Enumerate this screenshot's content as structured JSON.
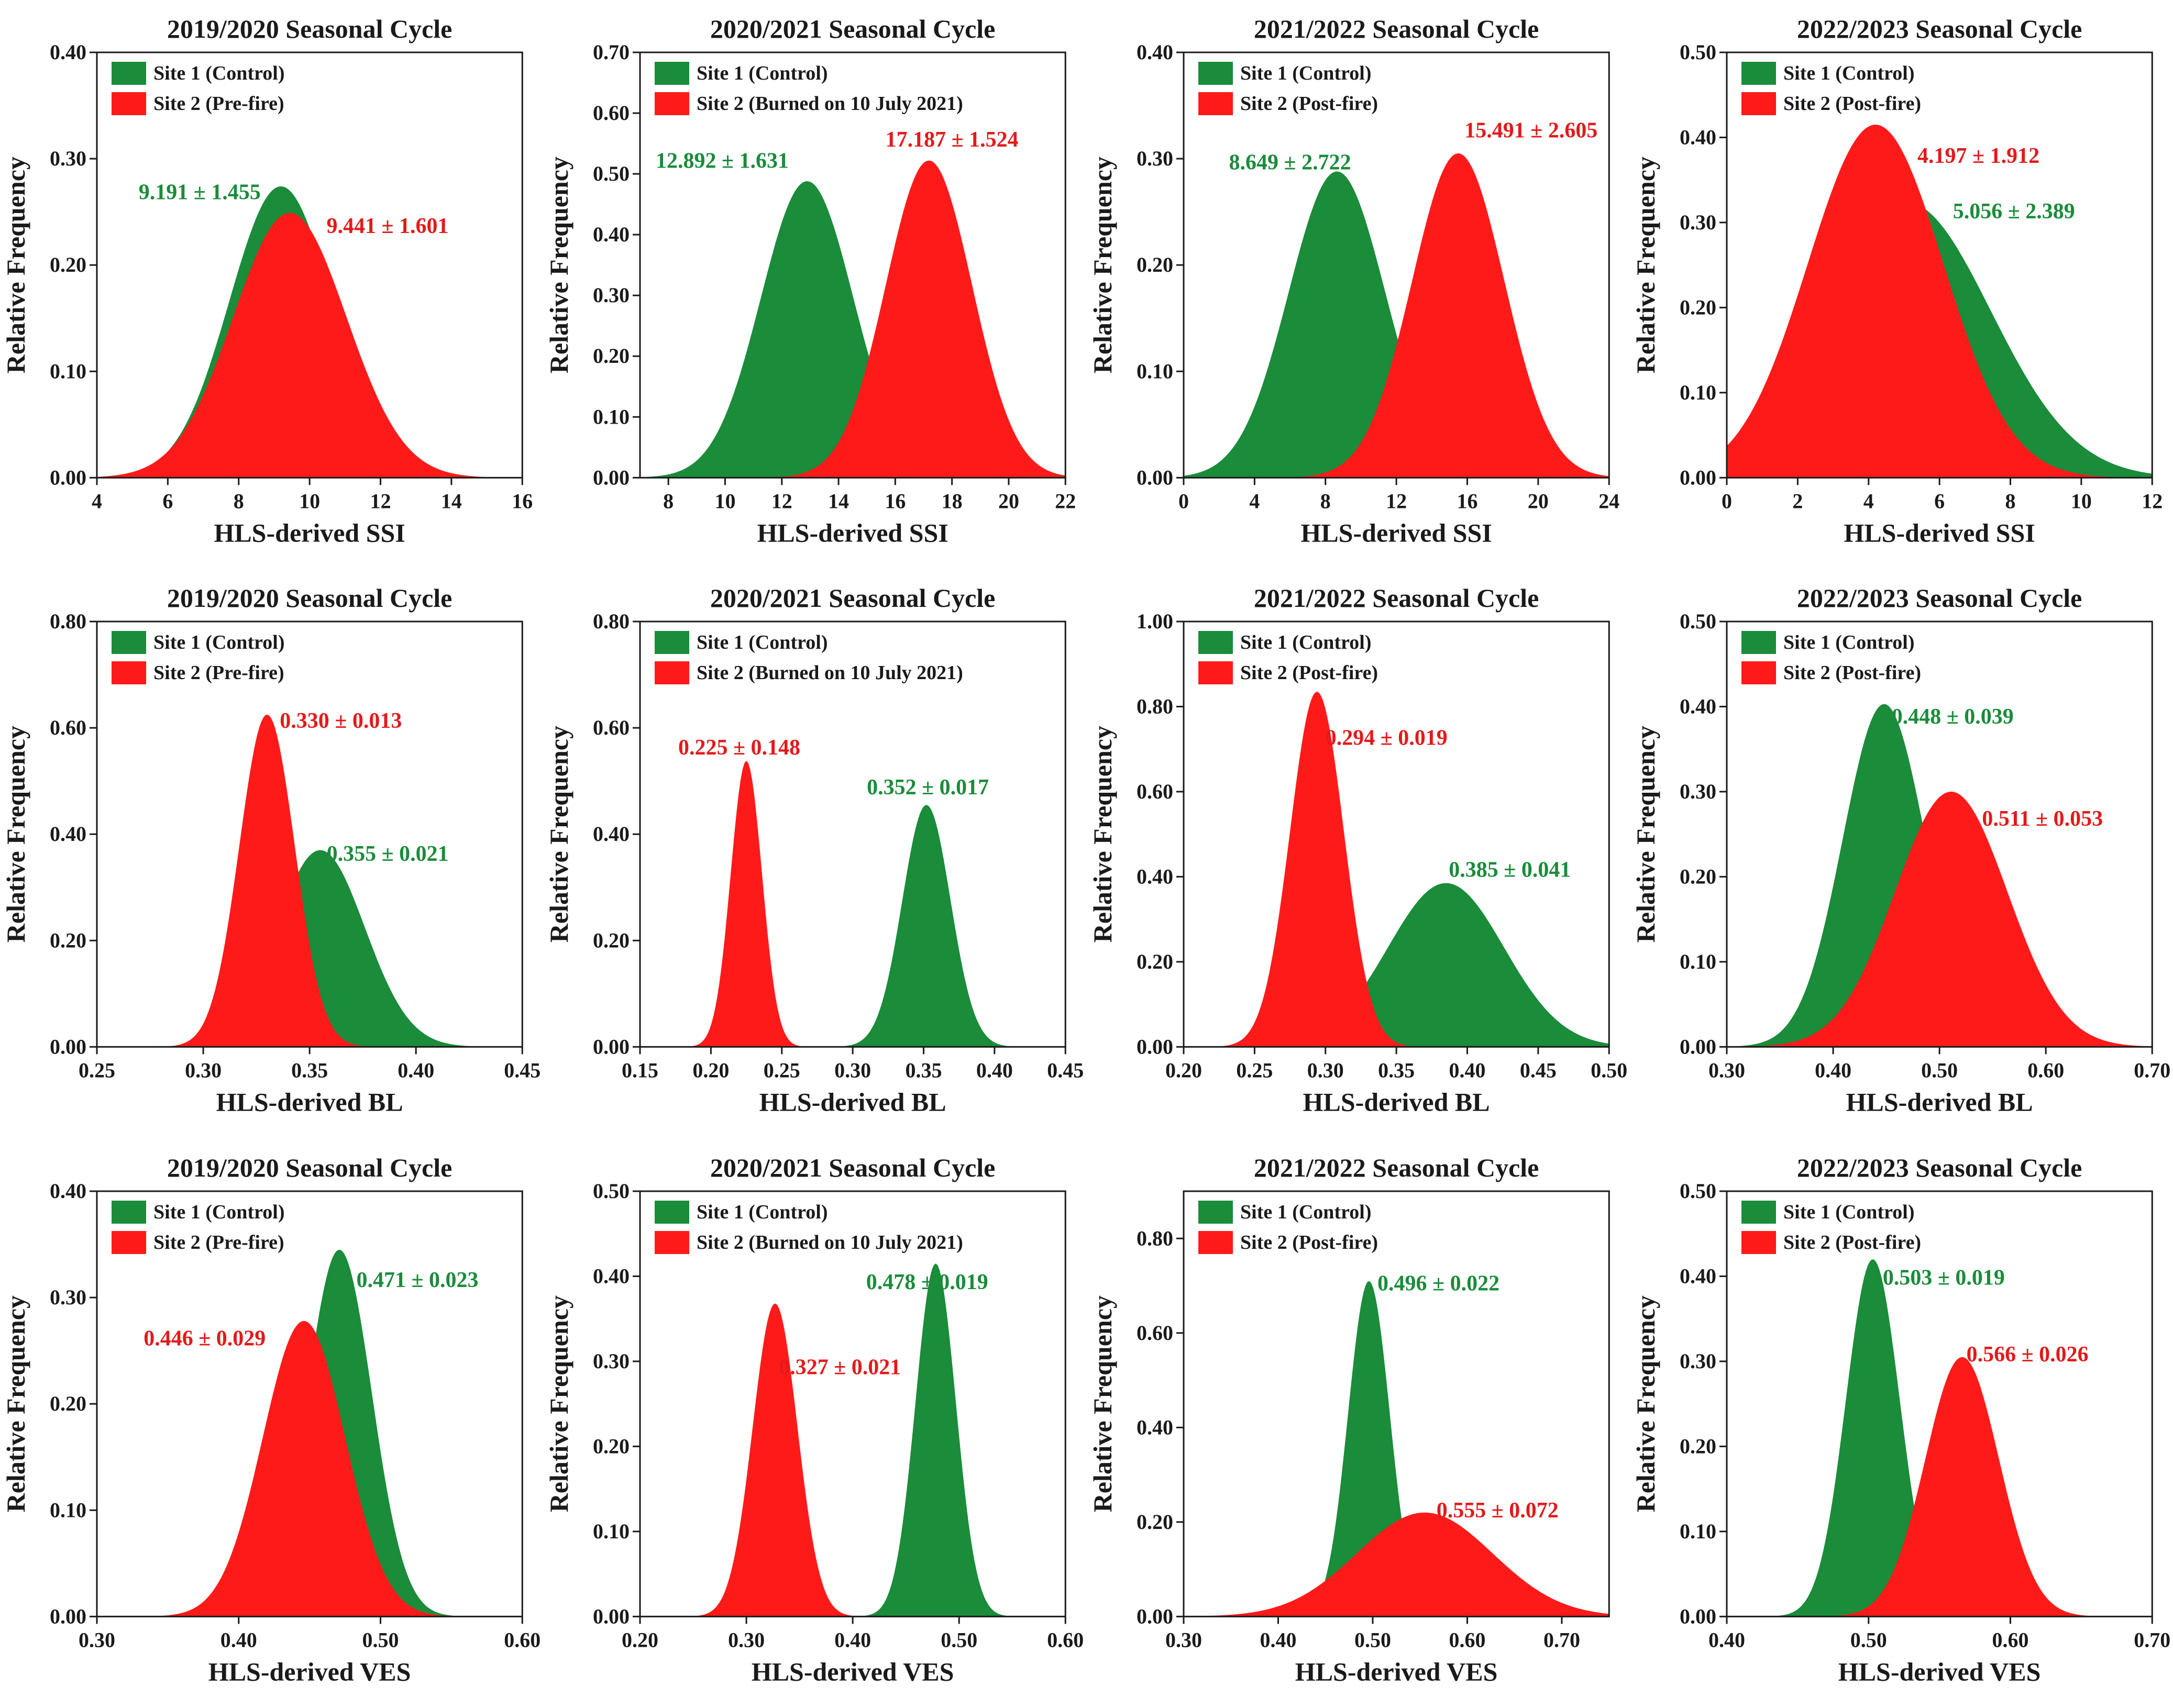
{
  "figure": {
    "rows": 3,
    "cols": 4
  },
  "colors": {
    "site1": "#1a8c3a",
    "site2": "#ff1a1a",
    "site1_text": "#1a8c3a",
    "site2_text": "#e31a1a",
    "axis": "#1a1a1a"
  },
  "chart_data": [
    {
      "type": "area",
      "title": "2019/2020 Seasonal Cycle",
      "xlabel": "HLS-derived SSI",
      "ylabel": "Relative Frequency",
      "xlim": [
        4,
        16
      ],
      "ylim": [
        0,
        0.4
      ],
      "xticks": [
        4,
        6,
        8,
        10,
        12,
        14,
        16
      ],
      "xtick_labels": [
        "4",
        "6",
        "8",
        "10",
        "12",
        "14",
        "16"
      ],
      "yticks": [
        0,
        0.1,
        0.2,
        0.3,
        0.4
      ],
      "ytick_labels": [
        "0.00",
        "0.10",
        "0.20",
        "0.30",
        "0.40"
      ],
      "series": [
        {
          "name": "Site 1 (Control)",
          "mean": 9.191,
          "sd": 1.455,
          "peak": 0.274,
          "label": "9.191 ± 1.455",
          "label_at": [
            6.9,
            0.262
          ],
          "label_anchor": "middle"
        },
        {
          "name": "Site 2 (Pre-fire)",
          "mean": 9.441,
          "sd": 1.601,
          "peak": 0.249,
          "label": "9.441 ± 1.601",
          "label_at": [
            12.2,
            0.23
          ],
          "label_anchor": "middle"
        }
      ]
    },
    {
      "type": "area",
      "title": "2020/2021 Seasonal Cycle",
      "xlabel": "HLS-derived SSI",
      "ylabel": "Relative Frequency",
      "xlim": [
        7,
        22
      ],
      "ylim": [
        0,
        0.7
      ],
      "xticks": [
        8,
        10,
        12,
        14,
        16,
        18,
        20,
        22
      ],
      "xtick_labels": [
        "8",
        "10",
        "12",
        "14",
        "16",
        "18",
        "20",
        "22"
      ],
      "yticks": [
        0,
        0.1,
        0.2,
        0.3,
        0.4,
        0.5,
        0.6,
        0.7
      ],
      "ytick_labels": [
        "0.00",
        "0.10",
        "0.20",
        "0.30",
        "0.40",
        "0.50",
        "0.60",
        "0.70"
      ],
      "series": [
        {
          "name": "Site 1 (Control)",
          "mean": 12.892,
          "sd": 1.631,
          "peak": 0.488,
          "label": "12.892 ± 1.631",
          "label_at": [
            9.9,
            0.51
          ],
          "label_anchor": "middle"
        },
        {
          "name": "Site 2 (Burned on 10 July 2021)",
          "mean": 17.187,
          "sd": 1.524,
          "peak": 0.522,
          "label": "17.187 ± 1.524",
          "label_at": [
            18.0,
            0.545
          ],
          "label_anchor": "middle"
        }
      ]
    },
    {
      "type": "area",
      "title": "2021/2022 Seasonal Cycle",
      "xlabel": "HLS-derived SSI",
      "ylabel": "Relative Frequency",
      "xlim": [
        0,
        24
      ],
      "ylim": [
        0,
        0.4
      ],
      "xticks": [
        0,
        4,
        8,
        12,
        16,
        20,
        24
      ],
      "xtick_labels": [
        "0",
        "4",
        "8",
        "12",
        "16",
        "20",
        "24"
      ],
      "yticks": [
        0,
        0.1,
        0.2,
        0.3,
        0.4
      ],
      "ytick_labels": [
        "0.00",
        "0.10",
        "0.20",
        "0.30",
        "0.40"
      ],
      "series": [
        {
          "name": "Site 1 (Control)",
          "mean": 8.649,
          "sd": 2.722,
          "peak": 0.288,
          "label": "8.649 ± 2.722",
          "label_at": [
            6.0,
            0.29
          ],
          "label_anchor": "middle"
        },
        {
          "name": "Site 2 (Post-fire)",
          "mean": 15.491,
          "sd": 2.605,
          "peak": 0.305,
          "label": "15.491 ± 2.605",
          "label_at": [
            19.6,
            0.32
          ],
          "label_anchor": "middle"
        }
      ]
    },
    {
      "type": "area",
      "title": "2022/2023 Seasonal Cycle",
      "xlabel": "HLS-derived SSI",
      "ylabel": "Relative Frequency",
      "xlim": [
        0,
        12
      ],
      "ylim": [
        0,
        0.5
      ],
      "xticks": [
        0,
        2,
        4,
        6,
        8,
        10,
        12
      ],
      "xtick_labels": [
        "0",
        "2",
        "4",
        "6",
        "8",
        "10",
        "12"
      ],
      "yticks": [
        0,
        0.1,
        0.2,
        0.3,
        0.4,
        0.5
      ],
      "ytick_labels": [
        "0.00",
        "0.10",
        "0.20",
        "0.30",
        "0.40",
        "0.50"
      ],
      "series": [
        {
          "name": "Site 1 (Control)",
          "mean": 5.056,
          "sd": 2.389,
          "peak": 0.324,
          "label": "5.056 ± 2.389",
          "label_at": [
            8.1,
            0.305
          ],
          "label_anchor": "middle"
        },
        {
          "name": "Site 2 (Post-fire)",
          "mean": 4.197,
          "sd": 1.912,
          "peak": 0.415,
          "label": "4.197 ± 1.912",
          "label_at": [
            7.1,
            0.37
          ],
          "label_anchor": "middle"
        }
      ]
    },
    {
      "type": "area",
      "title": "2019/2020 Seasonal Cycle",
      "xlabel": "HLS-derived BL",
      "ylabel": "Relative Frequency",
      "xlim": [
        0.25,
        0.45
      ],
      "ylim": [
        0,
        0.8
      ],
      "xticks": [
        0.25,
        0.3,
        0.35,
        0.4,
        0.45
      ],
      "xtick_labels": [
        "0.25",
        "0.30",
        "0.35",
        "0.40",
        "0.45"
      ],
      "yticks": [
        0,
        0.2,
        0.4,
        0.6,
        0.8
      ],
      "ytick_labels": [
        "0.00",
        "0.20",
        "0.40",
        "0.60",
        "0.80"
      ],
      "series": [
        {
          "name": "Site 1 (Control)",
          "mean": 0.355,
          "sd": 0.021,
          "peak": 0.37,
          "label": "0.355 ± 0.021",
          "label_at": [
            0.358,
            0.35
          ],
          "label_anchor": "start"
        },
        {
          "name": "Site 2 (Pre-fire)",
          "mean": 0.33,
          "sd": 0.013,
          "peak": 0.625,
          "label": "0.330 ± 0.013",
          "label_at": [
            0.336,
            0.6
          ],
          "label_anchor": "start"
        }
      ]
    },
    {
      "type": "area",
      "title": "2020/2021 Seasonal Cycle",
      "xlabel": "HLS-derived BL",
      "ylabel": "Relative Frequency",
      "xlim": [
        0.15,
        0.45
      ],
      "ylim": [
        0,
        0.8
      ],
      "xticks": [
        0.15,
        0.2,
        0.25,
        0.3,
        0.35,
        0.4,
        0.45
      ],
      "xtick_labels": [
        "0.15",
        "0.20",
        "0.25",
        "0.30",
        "0.35",
        "0.40",
        "0.45"
      ],
      "yticks": [
        0,
        0.2,
        0.4,
        0.6,
        0.8
      ],
      "ytick_labels": [
        "0.00",
        "0.20",
        "0.40",
        "0.60",
        "0.80"
      ],
      "series": [
        {
          "name": "Site 1 (Control)",
          "mean": 0.352,
          "sd": 0.017,
          "peak": 0.455,
          "label": "0.352 ± 0.017",
          "label_at": [
            0.353,
            0.475
          ],
          "label_anchor": "middle"
        },
        {
          "name": "Site 2 (Burned on 10 July 2021)",
          "mean": 0.225,
          "sd": 0.148,
          "sigma_shape": 0.011,
          "peak": 0.538,
          "label": "0.225 ± 0.148",
          "label_at": [
            0.22,
            0.55
          ],
          "label_anchor": "middle"
        }
      ]
    },
    {
      "type": "area",
      "title": "2021/2022 Seasonal Cycle",
      "xlabel": "HLS-derived BL",
      "ylabel": "Relative Frequency",
      "xlim": [
        0.2,
        0.5
      ],
      "ylim": [
        0,
        1.0
      ],
      "xticks": [
        0.2,
        0.25,
        0.3,
        0.35,
        0.4,
        0.45,
        0.5
      ],
      "xtick_labels": [
        "0.20",
        "0.25",
        "0.30",
        "0.35",
        "0.40",
        "0.45",
        "0.50"
      ],
      "yticks": [
        0,
        0.2,
        0.4,
        0.6,
        0.8,
        1.0
      ],
      "ytick_labels": [
        "0.00",
        "0.20",
        "0.40",
        "0.60",
        "0.80",
        "1.00"
      ],
      "series": [
        {
          "name": "Site 1 (Control)",
          "mean": 0.385,
          "sd": 0.041,
          "peak": 0.385,
          "label": "0.385 ± 0.041",
          "label_at": [
            0.387,
            0.4
          ],
          "label_anchor": "start"
        },
        {
          "name": "Site 2 (Post-fire)",
          "mean": 0.294,
          "sd": 0.019,
          "peak": 0.835,
          "label": "0.294 ± 0.019",
          "label_at": [
            0.3,
            0.71
          ],
          "label_anchor": "start"
        }
      ]
    },
    {
      "type": "area",
      "title": "2022/2023 Seasonal Cycle",
      "xlabel": "HLS-derived BL",
      "ylabel": "Relative Frequency",
      "xlim": [
        0.3,
        0.7
      ],
      "ylim": [
        0,
        0.5
      ],
      "xticks": [
        0.3,
        0.4,
        0.5,
        0.6,
        0.7
      ],
      "xtick_labels": [
        "0.30",
        "0.40",
        "0.50",
        "0.60",
        "0.70"
      ],
      "yticks": [
        0,
        0.1,
        0.2,
        0.3,
        0.4,
        0.5
      ],
      "ytick_labels": [
        "0.00",
        "0.10",
        "0.20",
        "0.30",
        "0.40",
        "0.50"
      ],
      "series": [
        {
          "name": "Site 1 (Control)",
          "mean": 0.448,
          "sd": 0.039,
          "peak": 0.403,
          "label": "0.448 ± 0.039",
          "label_at": [
            0.455,
            0.38
          ],
          "label_anchor": "start"
        },
        {
          "name": "Site 2 (Post-fire)",
          "mean": 0.511,
          "sd": 0.053,
          "peak": 0.3,
          "label": "0.511 ± 0.053",
          "label_at": [
            0.54,
            0.26
          ],
          "label_anchor": "start"
        }
      ]
    },
    {
      "type": "area",
      "title": "2019/2020 Seasonal Cycle",
      "xlabel": "HLS-derived VES",
      "ylabel": "Relative Frequency",
      "xlim": [
        0.3,
        0.6
      ],
      "ylim": [
        0,
        0.4
      ],
      "xticks": [
        0.3,
        0.4,
        0.5,
        0.6
      ],
      "xtick_labels": [
        "0.30",
        "0.40",
        "0.50",
        "0.60"
      ],
      "yticks": [
        0,
        0.1,
        0.2,
        0.3,
        0.4
      ],
      "ytick_labels": [
        "0.00",
        "0.10",
        "0.20",
        "0.30",
        "0.40"
      ],
      "series": [
        {
          "name": "Site 1 (Control)",
          "mean": 0.471,
          "sd": 0.023,
          "peak": 0.345,
          "label": "0.471 ± 0.023",
          "label_at": [
            0.483,
            0.31
          ],
          "label_anchor": "start"
        },
        {
          "name": "Site 2 (Pre-fire)",
          "mean": 0.446,
          "sd": 0.029,
          "peak": 0.278,
          "label": "0.446 ± 0.029",
          "label_at": [
            0.376,
            0.255
          ],
          "label_anchor": "middle"
        }
      ]
    },
    {
      "type": "area",
      "title": "2020/2021 Seasonal Cycle",
      "xlabel": "HLS-derived VES",
      "ylabel": "Relative Frequency",
      "xlim": [
        0.2,
        0.6
      ],
      "ylim": [
        0,
        0.5
      ],
      "xticks": [
        0.2,
        0.3,
        0.4,
        0.5,
        0.6
      ],
      "xtick_labels": [
        "0.20",
        "0.30",
        "0.40",
        "0.50",
        "0.60"
      ],
      "yticks": [
        0,
        0.1,
        0.2,
        0.3,
        0.4,
        0.5
      ],
      "ytick_labels": [
        "0.00",
        "0.10",
        "0.20",
        "0.30",
        "0.40",
        "0.50"
      ],
      "series": [
        {
          "name": "Site 1 (Control)",
          "mean": 0.478,
          "sd": 0.019,
          "peak": 0.415,
          "label": "0.478 ± 0.019",
          "label_at": [
            0.47,
            0.385
          ],
          "label_anchor": "middle"
        },
        {
          "name": "Site 2 (Burned on 10 July 2021)",
          "mean": 0.327,
          "sd": 0.021,
          "peak": 0.368,
          "label": "0.327 ± 0.021",
          "label_at": [
            0.388,
            0.285
          ],
          "label_anchor": "middle"
        }
      ]
    },
    {
      "type": "area",
      "title": "2021/2022 Seasonal Cycle",
      "xlabel": "HLS-derived VES",
      "ylabel": "Relative Frequency",
      "xlim": [
        0.3,
        0.75
      ],
      "ylim": [
        0,
        0.9
      ],
      "xticks": [
        0.3,
        0.4,
        0.5,
        0.6,
        0.7
      ],
      "xtick_labels": [
        "0.30",
        "0.40",
        "0.50",
        "0.60",
        "0.70"
      ],
      "yticks": [
        0,
        0.2,
        0.4,
        0.6,
        0.8
      ],
      "ytick_labels": [
        "0.00",
        "0.20",
        "0.40",
        "0.60",
        "0.80"
      ],
      "series": [
        {
          "name": "Site 1 (Control)",
          "mean": 0.496,
          "sd": 0.022,
          "peak": 0.71,
          "label": "0.496 ± 0.022",
          "label_at": [
            0.505,
            0.69
          ],
          "label_anchor": "start"
        },
        {
          "name": "Site 2 (Post-fire)",
          "mean": 0.555,
          "sd": 0.072,
          "peak": 0.22,
          "label": "0.555 ± 0.072",
          "label_at": [
            0.632,
            0.21
          ],
          "label_anchor": "middle"
        }
      ]
    },
    {
      "type": "area",
      "title": "2022/2023 Seasonal Cycle",
      "xlabel": "HLS-derived VES",
      "ylabel": "Relative Frequency",
      "xlim": [
        0.4,
        0.7
      ],
      "ylim": [
        0,
        0.5
      ],
      "xticks": [
        0.4,
        0.5,
        0.6,
        0.7
      ],
      "xtick_labels": [
        "0.40",
        "0.50",
        "0.60",
        "0.70"
      ],
      "yticks": [
        0,
        0.1,
        0.2,
        0.3,
        0.4,
        0.5
      ],
      "ytick_labels": [
        "0.00",
        "0.10",
        "0.20",
        "0.30",
        "0.40",
        "0.50"
      ],
      "series": [
        {
          "name": "Site 1 (Control)",
          "mean": 0.503,
          "sd": 0.019,
          "peak": 0.42,
          "label": "0.503 ± 0.019",
          "label_at": [
            0.51,
            0.39
          ],
          "label_anchor": "start"
        },
        {
          "name": "Site 2 (Post-fire)",
          "mean": 0.566,
          "sd": 0.026,
          "peak": 0.305,
          "label": "0.566 ± 0.026",
          "label_at": [
            0.569,
            0.3
          ],
          "label_anchor": "start"
        }
      ]
    }
  ]
}
